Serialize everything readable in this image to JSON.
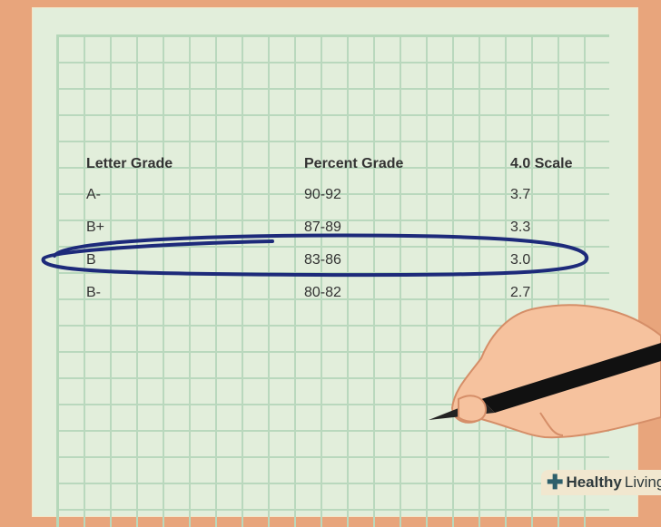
{
  "table": {
    "headers": [
      "Letter Grade",
      "Percent Grade",
      "4.0 Scale"
    ],
    "rows": [
      [
        "A-",
        "90-92",
        "3.7"
      ],
      [
        "B+",
        "87-89",
        "3.3"
      ],
      [
        "B",
        "83-86",
        "3.0"
      ],
      [
        "B-",
        "80-82",
        "2.7"
      ]
    ],
    "highlighted_row": "B"
  },
  "colors": {
    "background": "#e8a57c",
    "paper": "#e2eedb",
    "grid": "#b9d8bd",
    "circle": "#1d2a7a"
  },
  "logo": {
    "brand_bold": "Healthy",
    "brand_light": "Living"
  }
}
